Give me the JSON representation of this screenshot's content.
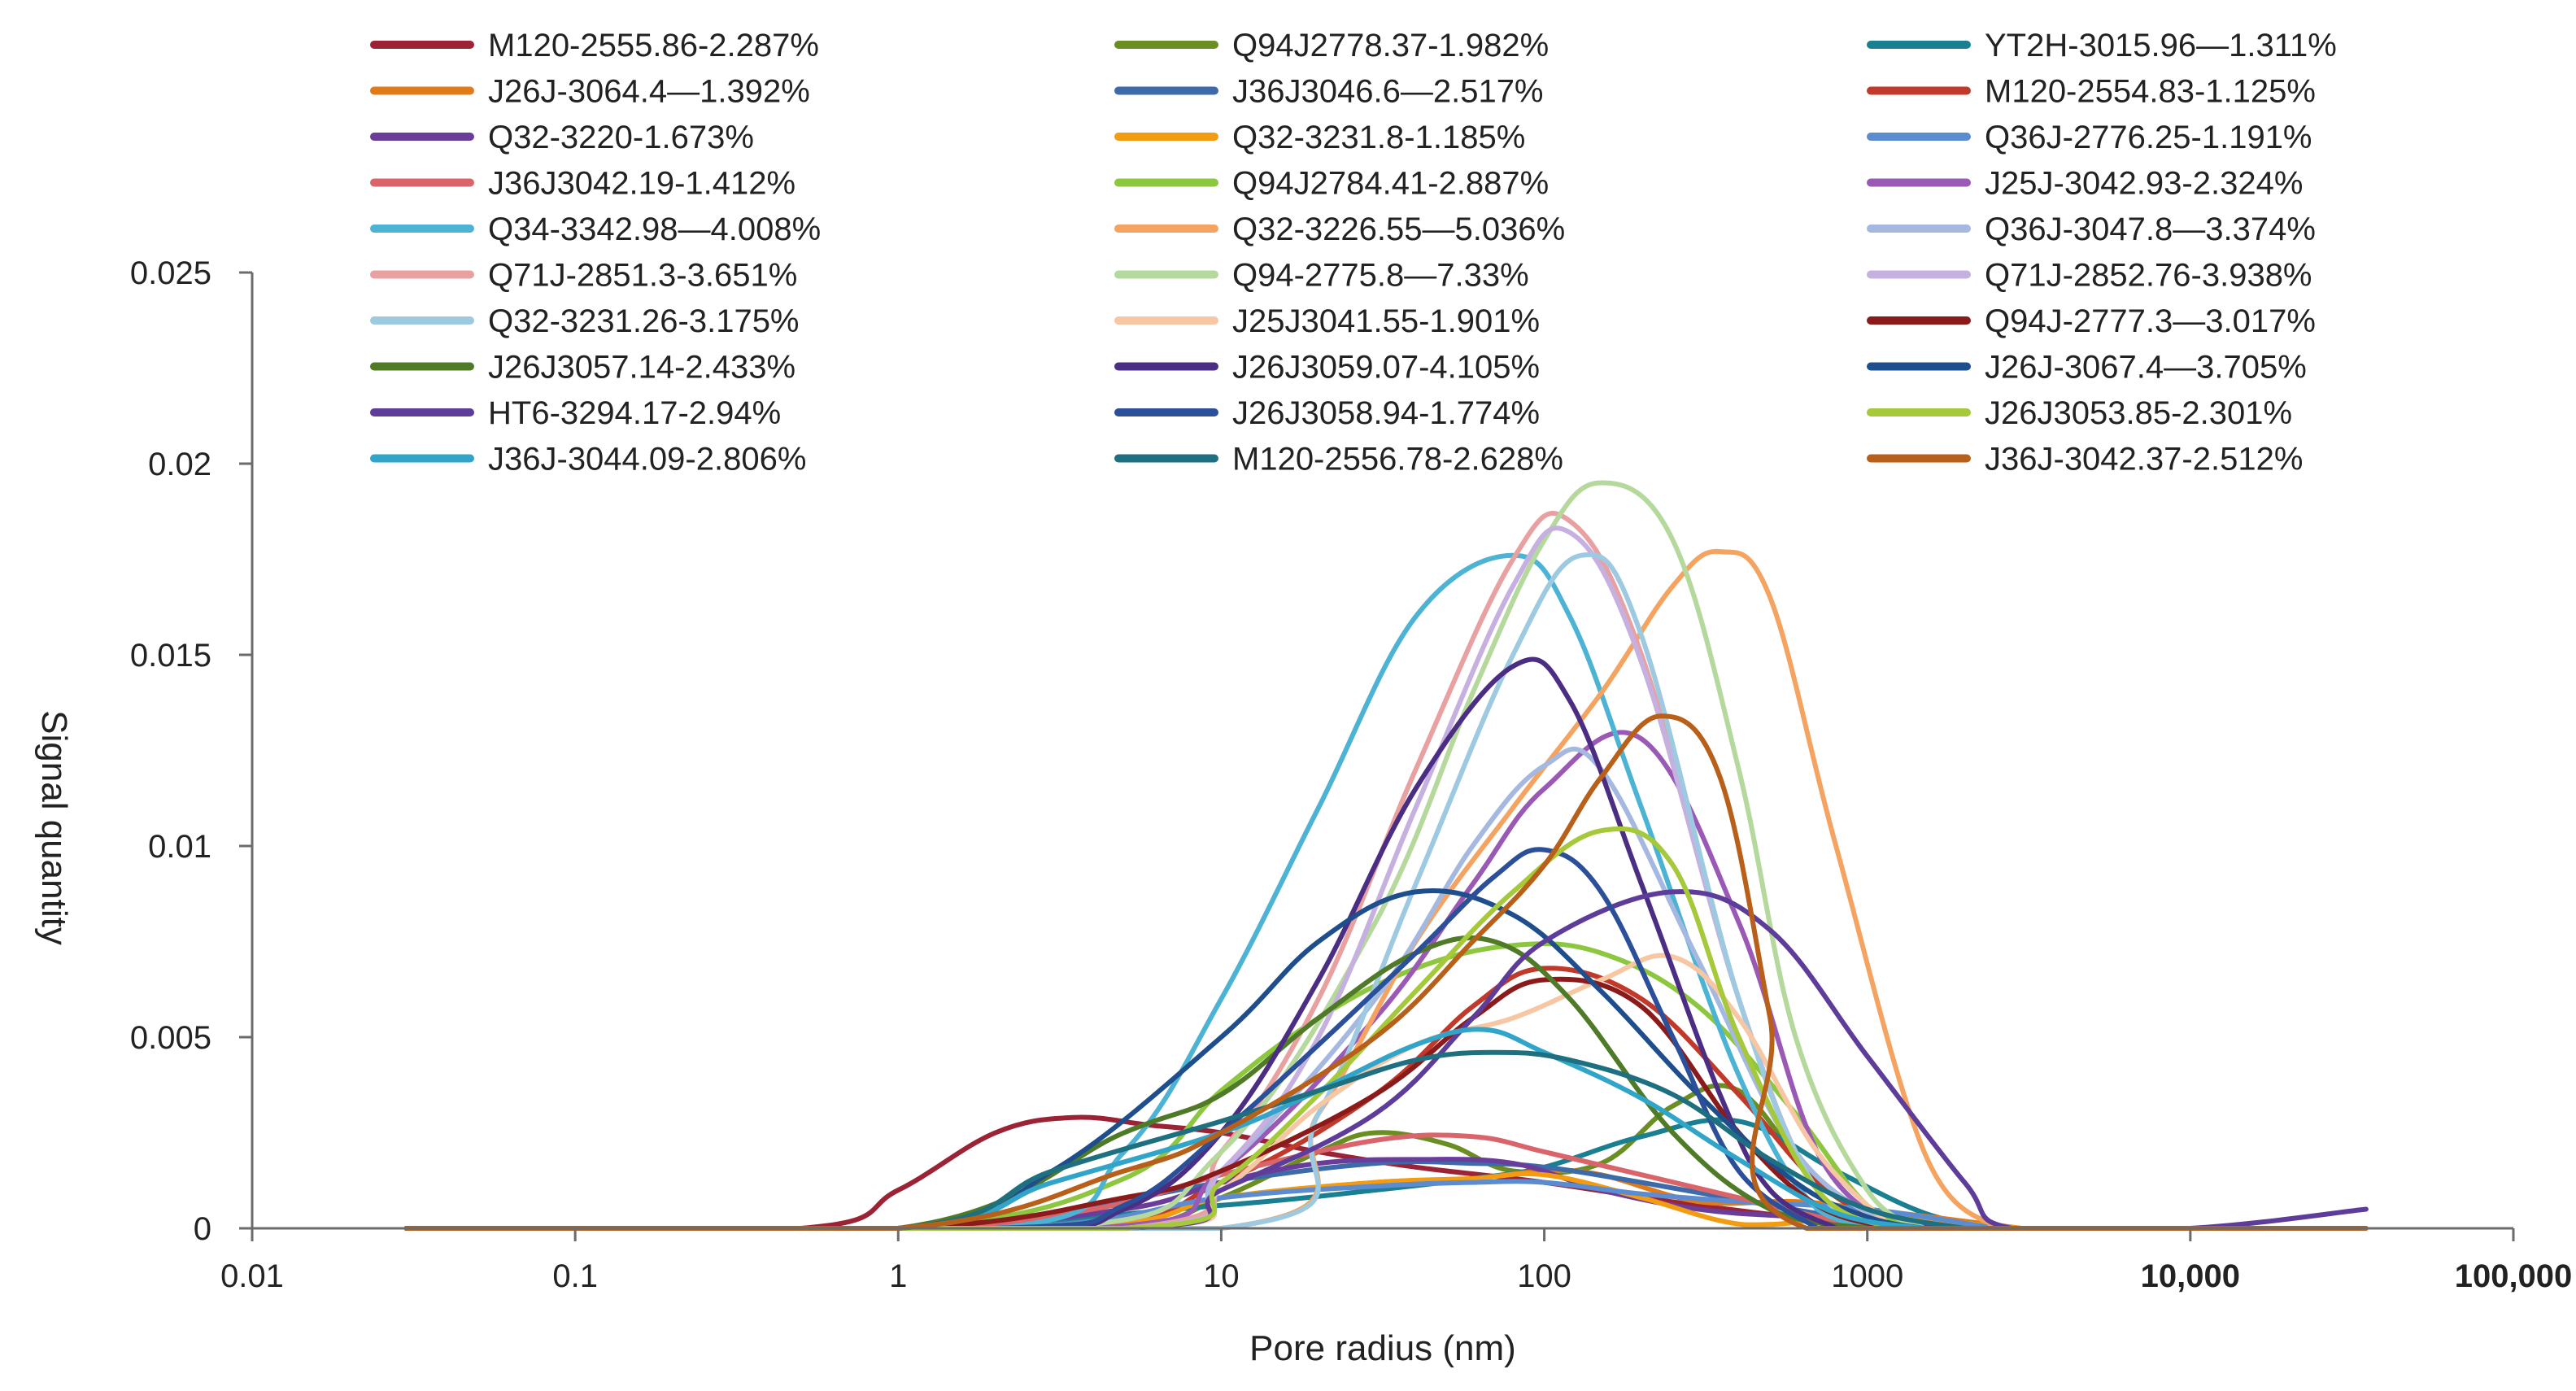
{
  "chart_data": {
    "type": "line",
    "xscale": "log",
    "xlabel": "Pore radius (nm)",
    "ylabel": "Signal quantity",
    "xlim": [
      0.01,
      100000
    ],
    "ylim": [
      0,
      0.025
    ],
    "xticks": [
      {
        "value": 0.01,
        "label": "0.01",
        "bold": false
      },
      {
        "value": 0.1,
        "label": "0.1",
        "bold": false
      },
      {
        "value": 1,
        "label": "1",
        "bold": false
      },
      {
        "value": 10,
        "label": "10",
        "bold": false
      },
      {
        "value": 100,
        "label": "100",
        "bold": false
      },
      {
        "value": 1000,
        "label": "1000",
        "bold": false
      },
      {
        "value": 10000,
        "label": "10,000",
        "bold": true
      },
      {
        "value": 100000,
        "label": "100,000",
        "bold": true
      }
    ],
    "yticks": [
      {
        "value": 0,
        "label": "0"
      },
      {
        "value": 0.005,
        "label": "0.005"
      },
      {
        "value": 0.01,
        "label": "0.01"
      },
      {
        "value": 0.015,
        "label": "0.015"
      },
      {
        "value": 0.02,
        "label": "0.02"
      },
      {
        "value": 0.025,
        "label": "0.025"
      }
    ],
    "legend_columns": 3,
    "legend_position": "top",
    "series": [
      {
        "name": "M120-2555.86-2.287%",
        "color": "#9b2335",
        "x": [
          0.03,
          0.5,
          1,
          2,
          3.5,
          6,
          10,
          20,
          40,
          100,
          300,
          1000,
          2000
        ],
        "y": [
          0,
          0,
          0.001,
          0.0025,
          0.0029,
          0.0027,
          0.0025,
          0.002,
          0.0016,
          0.0012,
          0.0006,
          0.0001,
          0
        ]
      },
      {
        "name": "Q94J2778.37-1.982%",
        "color": "#6b8e23",
        "x": [
          0.03,
          1,
          5,
          10,
          20,
          30,
          50,
          80,
          150,
          250,
          400,
          700,
          1200
        ],
        "y": [
          0,
          0,
          0,
          0.0008,
          0.002,
          0.0025,
          0.0022,
          0.0015,
          0.0017,
          0.0032,
          0.0036,
          0.0012,
          0
        ]
      },
      {
        "name": "YT2H-3015.96—1.311%",
        "color": "#1b7f92",
        "x": [
          0.03,
          1,
          10,
          30,
          60,
          100,
          200,
          400,
          800,
          1500,
          2500
        ],
        "y": [
          0,
          0,
          0.0006,
          0.001,
          0.0013,
          0.0016,
          0.0024,
          0.0028,
          0.0015,
          0.0004,
          0
        ]
      },
      {
        "name": "J26J-3064.4—1.392%",
        "color": "#e07b1a",
        "x": [
          0.03,
          2,
          10,
          30,
          60,
          100,
          150,
          300,
          600,
          1000,
          3000
        ],
        "y": [
          0,
          0,
          0.0008,
          0.0012,
          0.0013,
          0.0015,
          0.0014,
          0.0007,
          0.0007,
          0.0005,
          0
        ]
      },
      {
        "name": "J36J3046.6—2.517%",
        "color": "#3d6aa9",
        "x": [
          0.03,
          1,
          3,
          10,
          30,
          60,
          100,
          200,
          500,
          1000,
          2000
        ],
        "y": [
          0,
          0,
          0.0004,
          0.0012,
          0.0017,
          0.0017,
          0.0016,
          0.0012,
          0.0006,
          0.0002,
          0
        ]
      },
      {
        "name": "M120-2554.83-1.125%",
        "color": "#c0392b",
        "x": [
          0.03,
          3,
          10,
          30,
          60,
          100,
          200,
          400,
          700,
          1200
        ],
        "y": [
          0,
          0,
          0.0012,
          0.0035,
          0.0058,
          0.0068,
          0.006,
          0.0035,
          0.0012,
          0
        ]
      },
      {
        "name": "Q32-3220-1.673%",
        "color": "#6a3d9a",
        "x": [
          0.03,
          1,
          5,
          10,
          20,
          40,
          80,
          150,
          300,
          600,
          1500,
          3000
        ],
        "y": [
          0,
          0,
          0.0005,
          0.0012,
          0.0017,
          0.0018,
          0.0017,
          0.001,
          0.0005,
          0.0003,
          0.0001,
          0
        ]
      },
      {
        "name": "Q32-3231.8-1.185%",
        "color": "#f39c12",
        "x": [
          0.03,
          3,
          10,
          30,
          60,
          100,
          200,
          350,
          500,
          1000,
          3000
        ],
        "y": [
          0,
          0,
          0.0008,
          0.0012,
          0.0013,
          0.0014,
          0.0008,
          0.0002,
          0.0001,
          0.0003,
          0
        ]
      },
      {
        "name": "Q36J-2776.25-1.191%",
        "color": "#5b8bd0",
        "x": [
          0.03,
          2,
          10,
          30,
          60,
          100,
          200,
          400,
          1000,
          2500
        ],
        "y": [
          0,
          0,
          0.0008,
          0.0011,
          0.0012,
          0.0012,
          0.0009,
          0.0007,
          0.0005,
          0
        ]
      },
      {
        "name": "J36J3042.19-1.412%",
        "color": "#d9656b",
        "x": [
          0.03,
          1,
          4,
          10,
          30,
          60,
          100,
          200,
          400,
          800,
          1200
        ],
        "y": [
          0,
          0,
          0.0005,
          0.0014,
          0.0023,
          0.0024,
          0.002,
          0.0014,
          0.0008,
          0.0002,
          0
        ]
      },
      {
        "name": "Q94J2784.41-2.887%",
        "color": "#8dc63f",
        "x": [
          0.03,
          1,
          5,
          10,
          20,
          40,
          80,
          150,
          300,
          600,
          1000,
          1500
        ],
        "y": [
          0,
          0,
          0.0013,
          0.0036,
          0.0055,
          0.0068,
          0.0074,
          0.0072,
          0.0058,
          0.003,
          0.0006,
          0
        ]
      },
      {
        "name": "J25J-3042.93-2.324%",
        "color": "#9b59b6",
        "x": [
          0.03,
          4,
          10,
          30,
          60,
          100,
          200,
          400,
          700,
          1200
        ],
        "y": [
          0,
          0,
          0.0015,
          0.0055,
          0.009,
          0.0115,
          0.0128,
          0.008,
          0.002,
          0
        ]
      },
      {
        "name": "Q34-3342.98—4.008%",
        "color": "#4db3d4",
        "x": [
          0.03,
          2,
          5,
          10,
          20,
          40,
          80,
          120,
          200,
          400,
          700,
          1200
        ],
        "y": [
          0,
          0,
          0.002,
          0.006,
          0.011,
          0.016,
          0.0176,
          0.016,
          0.011,
          0.004,
          0.0005,
          0
        ]
      },
      {
        "name": "Q32-3226.55—5.036%",
        "color": "#f4a460",
        "x": [
          0.03,
          10,
          20,
          40,
          80,
          150,
          250,
          350,
          500,
          800,
          1500,
          2500
        ],
        "y": [
          0,
          0,
          0.003,
          0.0075,
          0.011,
          0.014,
          0.0168,
          0.0177,
          0.0165,
          0.01,
          0.002,
          0
        ]
      },
      {
        "name": "Q36J-3047.8—3.374%",
        "color": "#a4b8e0",
        "x": [
          0.03,
          5,
          10,
          30,
          60,
          100,
          150,
          300,
          600,
          1200
        ],
        "y": [
          0,
          0,
          0.0015,
          0.006,
          0.01,
          0.0121,
          0.012,
          0.007,
          0.002,
          0
        ]
      },
      {
        "name": "Q71J-2851.3-3.651%",
        "color": "#e8a0a0",
        "x": [
          0.03,
          5,
          10,
          20,
          40,
          80,
          120,
          200,
          400,
          700,
          1200
        ],
        "y": [
          0,
          0,
          0.002,
          0.006,
          0.012,
          0.0175,
          0.0185,
          0.015,
          0.006,
          0.001,
          0
        ]
      },
      {
        "name": "Q94-2775.8—7.33%",
        "color": "#b5d99c",
        "x": [
          0.03,
          3,
          10,
          30,
          60,
          100,
          150,
          250,
          400,
          600,
          1000,
          1500
        ],
        "y": [
          0,
          0,
          0.002,
          0.008,
          0.014,
          0.018,
          0.0195,
          0.018,
          0.012,
          0.005,
          0.001,
          0
        ]
      },
      {
        "name": "Q71J-2852.76-3.938%",
        "color": "#c5b0e0",
        "x": [
          0.03,
          5,
          10,
          20,
          40,
          80,
          120,
          200,
          400,
          700,
          1200
        ],
        "y": [
          0,
          0,
          0.0015,
          0.005,
          0.011,
          0.0168,
          0.0182,
          0.0148,
          0.006,
          0.001,
          0
        ]
      },
      {
        "name": "Q32-3231.26-3.175%",
        "color": "#9ecae1",
        "x": [
          0.03,
          10,
          20,
          40,
          80,
          130,
          200,
          400,
          700,
          1200
        ],
        "y": [
          0,
          0,
          0.003,
          0.009,
          0.015,
          0.0176,
          0.0155,
          0.006,
          0.001,
          0
        ]
      },
      {
        "name": "J25J3041.55-1.901%",
        "color": "#f7c6a3",
        "x": [
          0.03,
          5,
          10,
          20,
          40,
          80,
          150,
          250,
          400,
          700,
          1200
        ],
        "y": [
          0,
          0,
          0.001,
          0.0032,
          0.0048,
          0.0055,
          0.0065,
          0.0071,
          0.0055,
          0.002,
          0
        ]
      },
      {
        "name": "Q94J-2777.3—3.017%",
        "color": "#8b1a1a",
        "x": [
          0.03,
          1,
          5,
          10,
          30,
          60,
          100,
          200,
          400,
          700,
          1200
        ],
        "y": [
          0,
          0,
          0.0008,
          0.0015,
          0.0035,
          0.0055,
          0.0065,
          0.0058,
          0.0025,
          0.0006,
          0
        ]
      },
      {
        "name": "J26J3057.14-2.433%",
        "color": "#4f7a28",
        "x": [
          0.03,
          1,
          5,
          10,
          20,
          40,
          70,
          120,
          250,
          500,
          1000
        ],
        "y": [
          0,
          0,
          0.0025,
          0.0035,
          0.0055,
          0.0072,
          0.0075,
          0.006,
          0.0025,
          0.0005,
          0
        ]
      },
      {
        "name": "J26J3059.07-4.105%",
        "color": "#4b2e83",
        "x": [
          0.03,
          2,
          5,
          10,
          20,
          40,
          80,
          120,
          200,
          350,
          500,
          800
        ],
        "y": [
          0,
          0,
          0.0005,
          0.0025,
          0.0065,
          0.0115,
          0.0147,
          0.0138,
          0.009,
          0.0035,
          0.001,
          0
        ]
      },
      {
        "name": "J26J-3067.4—3.705%",
        "color": "#1f4e8c",
        "x": [
          0.03,
          1,
          3,
          10,
          20,
          40,
          80,
          150,
          300,
          600,
          1000,
          1500
        ],
        "y": [
          0,
          0,
          0.0015,
          0.005,
          0.0075,
          0.0088,
          0.0082,
          0.0062,
          0.0035,
          0.0012,
          0.0003,
          0
        ]
      },
      {
        "name": "HT6-3294.17-2.94%",
        "color": "#5e3c99",
        "x": [
          0.03,
          5,
          10,
          30,
          60,
          100,
          250,
          500,
          1000,
          2000,
          2800,
          10000,
          35000
        ],
        "y": [
          0,
          0,
          0.001,
          0.003,
          0.0055,
          0.0075,
          0.0088,
          0.0078,
          0.0045,
          0.0012,
          0,
          0,
          0.0005
        ]
      },
      {
        "name": "J26J3058.94-1.774%",
        "color": "#2b4f99",
        "x": [
          0.03,
          2,
          5,
          10,
          20,
          40,
          70,
          100,
          150,
          250,
          400,
          700
        ],
        "y": [
          0,
          0,
          0.0006,
          0.0025,
          0.0048,
          0.0072,
          0.0092,
          0.0099,
          0.0088,
          0.005,
          0.0015,
          0
        ]
      },
      {
        "name": "J26J3053.85-2.301%",
        "color": "#a5c93a",
        "x": [
          0.03,
          5,
          10,
          20,
          40,
          80,
          150,
          250,
          400,
          700,
          1200
        ],
        "y": [
          0,
          0,
          0.0012,
          0.0035,
          0.0062,
          0.0088,
          0.0104,
          0.0095,
          0.005,
          0.001,
          0
        ]
      },
      {
        "name": "J36J-3044.09-2.806%",
        "color": "#31a5c9",
        "x": [
          0.03,
          1,
          3,
          10,
          20,
          40,
          65,
          100,
          200,
          400,
          800,
          1500
        ],
        "y": [
          0,
          0,
          0.0012,
          0.0025,
          0.0036,
          0.0048,
          0.0052,
          0.0046,
          0.0034,
          0.0018,
          0.0004,
          0
        ]
      },
      {
        "name": "M120-2556.78-2.628%",
        "color": "#1e6f7f",
        "x": [
          0.03,
          1,
          3,
          10,
          20,
          40,
          70,
          120,
          250,
          500,
          1000,
          2000
        ],
        "y": [
          0,
          0,
          0.0015,
          0.0028,
          0.0036,
          0.0044,
          0.0046,
          0.0044,
          0.0035,
          0.0018,
          0.0005,
          0
        ]
      },
      {
        "name": "J36J-3042.37-2.512%",
        "color": "#b8601a",
        "x": [
          0.03,
          1,
          5,
          10,
          30,
          60,
          100,
          150,
          230,
          350,
          500,
          650,
          35000
        ],
        "y": [
          0,
          0,
          0.0015,
          0.0025,
          0.005,
          0.0075,
          0.0095,
          0.0118,
          0.0134,
          0.0118,
          0.0055,
          0,
          0
        ]
      }
    ]
  }
}
